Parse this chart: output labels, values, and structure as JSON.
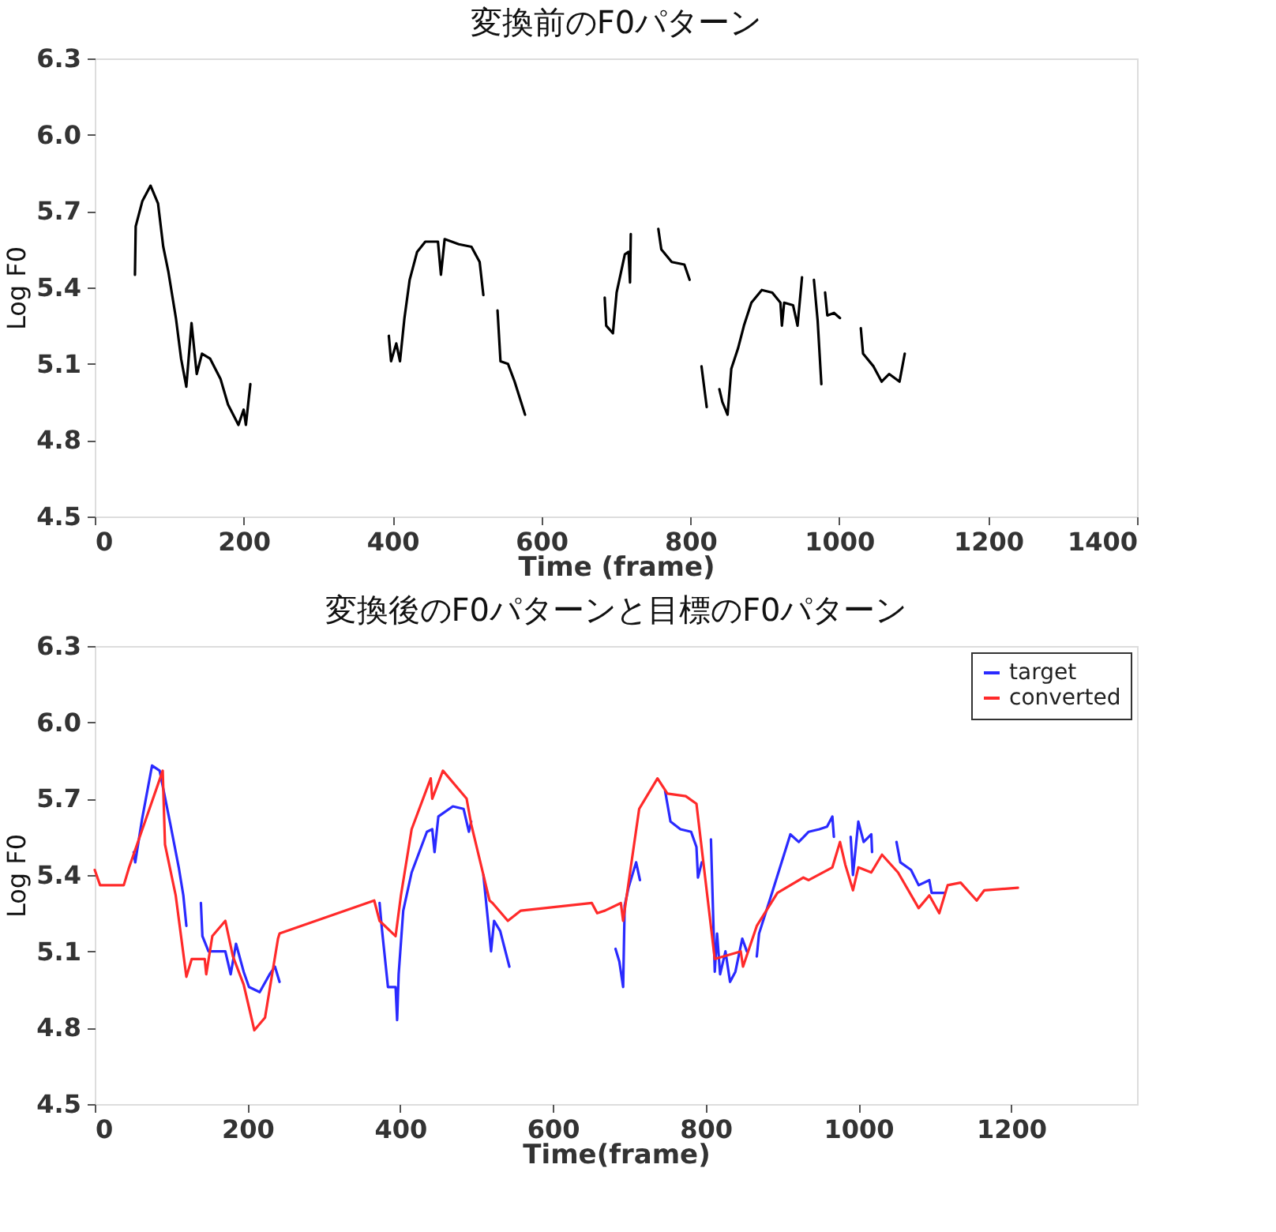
{
  "chart_data": [
    {
      "type": "line",
      "title": "変換前のF0パターン",
      "xlabel": "Time (frame)",
      "ylabel": "Log F0",
      "xlim": [
        0,
        1400
      ],
      "ylim": [
        4.5,
        6.3
      ],
      "xticks": [
        0,
        200,
        400,
        600,
        800,
        1000,
        1200,
        1400
      ],
      "yticks": [
        {
          "value": 6.3,
          "label": "6.3"
        },
        {
          "value": 6.0,
          "label": "6.0"
        },
        {
          "value": 5.7,
          "label": "5.7"
        },
        {
          "value": 5.4,
          "label": "5.4"
        },
        {
          "value": 5.1,
          "label": "5.1"
        },
        {
          "value": 4.8,
          "label": "4.8"
        },
        {
          "value": 4.5,
          "label": "4.5"
        }
      ],
      "marker": "none",
      "line_style": "solid",
      "series": [
        {
          "color": "#000000",
          "x": [
            54,
            55,
            64,
            75,
            85,
            92,
            99,
            109,
            116,
            123,
            130,
            137,
            144,
            155,
            169,
            179,
            193,
            200,
            203,
            209,
            300,
            395,
            398,
            405,
            410,
            416,
            423,
            433,
            444,
            461,
            465,
            470,
            489,
            506,
            517,
            522,
            530,
            541,
            545,
            555,
            564,
            578,
            630,
            685,
            687,
            696,
            701,
            712,
            717,
            719,
            720,
            740,
            757,
            761,
            775,
            792,
            799,
            807,
            815,
            822,
            830,
            839,
            843,
            850,
            855,
            864,
            872,
            882,
            896,
            910,
            921,
            923,
            926,
            938,
            944,
            950,
            958,
            966,
            971,
            976,
            978,
            981,
            984,
            993,
            1001,
            1015,
            1029,
            1032,
            1046,
            1057,
            1067,
            1081,
            1088
          ],
          "values": [
            5.45,
            5.64,
            5.74,
            5.8,
            5.73,
            5.56,
            5.46,
            5.28,
            5.12,
            5.01,
            5.26,
            5.06,
            5.14,
            5.12,
            5.04,
            4.94,
            4.86,
            4.92,
            4.86,
            5.02,
            null,
            5.21,
            5.11,
            5.18,
            5.11,
            5.28,
            5.43,
            5.54,
            5.58,
            5.58,
            5.45,
            5.59,
            5.57,
            5.56,
            5.5,
            5.37,
            null,
            5.31,
            5.11,
            5.1,
            5.03,
            4.9,
            null,
            5.36,
            5.25,
            5.22,
            5.38,
            5.53,
            5.54,
            5.42,
            5.61,
            null,
            5.63,
            5.55,
            5.5,
            5.49,
            5.43,
            null,
            5.09,
            4.93,
            null,
            5.0,
            4.95,
            4.9,
            5.08,
            5.16,
            5.25,
            5.34,
            5.39,
            5.38,
            5.34,
            5.25,
            5.34,
            5.33,
            5.25,
            5.44,
            null,
            5.43,
            5.27,
            5.02,
            null,
            5.38,
            5.29,
            5.3,
            5.28,
            null,
            5.24,
            5.14,
            5.09,
            5.03,
            5.06,
            5.03,
            5.14
          ]
        }
      ]
    },
    {
      "type": "line",
      "title": "変換後のF0パターンと目標のF0パターン",
      "xlabel": "Time(frame)",
      "ylabel": "Log F0",
      "xlim": [
        0,
        1365
      ],
      "ylim": [
        4.5,
        6.3
      ],
      "xticks": [
        0,
        200,
        400,
        600,
        800,
        1000,
        1200
      ],
      "yticks": [
        {
          "value": 6.3,
          "label": "6.3"
        },
        {
          "value": 6.0,
          "label": "6.0"
        },
        {
          "value": 5.7,
          "label": "5.7"
        },
        {
          "value": 5.4,
          "label": "5.4"
        },
        {
          "value": 5.1,
          "label": "5.1"
        },
        {
          "value": 4.8,
          "label": "4.8"
        },
        {
          "value": 4.5,
          "label": "4.5"
        }
      ],
      "marker": "none",
      "line_style": "solid",
      "legend": "top right",
      "series": [
        {
          "name": "target",
          "color": "#2a2aff",
          "x": [
            51,
            53,
            62,
            75,
            85,
            99,
            110,
            116,
            120,
            130,
            139,
            141,
            149,
            171,
            178,
            185,
            195,
            202,
            216,
            229,
            236,
            242,
            300,
            373,
            376,
            384,
            394,
            396,
            398,
            404,
            415,
            435,
            442,
            445,
            450,
            469,
            483,
            490,
            493,
            500,
            509,
            519,
            523,
            531,
            543,
            600,
            682,
            687,
            692,
            694,
            699,
            709,
            714,
            730,
            747,
            754,
            767,
            781,
            788,
            790,
            795,
            800,
            807,
            812,
            815,
            819,
            826,
            832,
            839,
            848,
            854,
            860,
            867,
            870,
            887,
            911,
            922,
            935,
            949,
            959,
            966,
            968,
            980,
            990,
            993,
            1000,
            1007,
            1017,
            1018,
            1035,
            1050,
            1055,
            1069,
            1079,
            1093,
            1096,
            1113
          ],
          "values": [
            5.49,
            5.45,
            5.62,
            5.83,
            5.81,
            5.6,
            5.43,
            5.32,
            5.2,
            null,
            5.29,
            5.16,
            5.1,
            5.1,
            5.01,
            5.13,
            5.02,
            4.96,
            4.94,
            5.01,
            5.04,
            4.98,
            null,
            5.29,
            5.19,
            4.96,
            4.96,
            4.83,
            5.01,
            5.26,
            5.41,
            5.57,
            5.58,
            5.49,
            5.63,
            5.67,
            5.66,
            5.57,
            5.61,
            null,
            5.4,
            5.1,
            5.22,
            5.18,
            5.04,
            null,
            5.11,
            5.06,
            4.96,
            5.28,
            5.35,
            5.45,
            5.38,
            null,
            5.73,
            5.61,
            5.58,
            5.57,
            5.51,
            5.39,
            5.45,
            null,
            5.54,
            5.02,
            5.17,
            5.01,
            5.1,
            4.98,
            5.02,
            5.15,
            5.1,
            null,
            5.08,
            5.17,
            5.33,
            5.56,
            5.53,
            5.57,
            5.58,
            5.59,
            5.63,
            5.55,
            null,
            5.55,
            5.4,
            5.61,
            5.53,
            5.56,
            5.49,
            null,
            5.53,
            5.45,
            5.42,
            5.36,
            5.38,
            5.33,
            5.33
          ]
        },
        {
          "name": "converted",
          "color": "#ff2a2a",
          "x": [
            0,
            7,
            38,
            45,
            89,
            92,
            106,
            120,
            127,
            144,
            146,
            154,
            171,
            181,
            195,
            209,
            223,
            240,
            242,
            366,
            373,
            394,
            401,
            415,
            440,
            442,
            456,
            487,
            493,
            517,
            521,
            541,
            558,
            651,
            658,
            668,
            689,
            692,
            702,
            713,
            737,
            750,
            774,
            788,
            812,
            846,
            849,
            867,
            894,
            928,
            935,
            966,
            976,
            983,
            993,
            1000,
            1017,
            1031,
            1052,
            1079,
            1093,
            1106,
            1117,
            1134,
            1155,
            1165,
            1209
          ],
          "values": [
            5.42,
            5.36,
            5.36,
            5.43,
            5.81,
            5.52,
            5.32,
            5.0,
            5.07,
            5.07,
            5.01,
            5.16,
            5.22,
            5.08,
            4.97,
            4.79,
            4.84,
            5.15,
            5.17,
            5.3,
            5.22,
            5.16,
            5.32,
            5.58,
            5.78,
            5.7,
            5.81,
            5.7,
            5.6,
            5.3,
            5.29,
            5.22,
            5.26,
            5.29,
            5.25,
            5.26,
            5.29,
            5.22,
            5.43,
            5.66,
            5.78,
            5.72,
            5.71,
            5.68,
            5.07,
            5.1,
            5.04,
            5.2,
            5.33,
            5.39,
            5.38,
            5.43,
            5.53,
            5.44,
            5.34,
            5.43,
            5.41,
            5.48,
            5.41,
            5.27,
            5.32,
            5.25,
            5.36,
            5.37,
            5.3,
            5.34,
            5.35
          ]
        }
      ]
    }
  ]
}
